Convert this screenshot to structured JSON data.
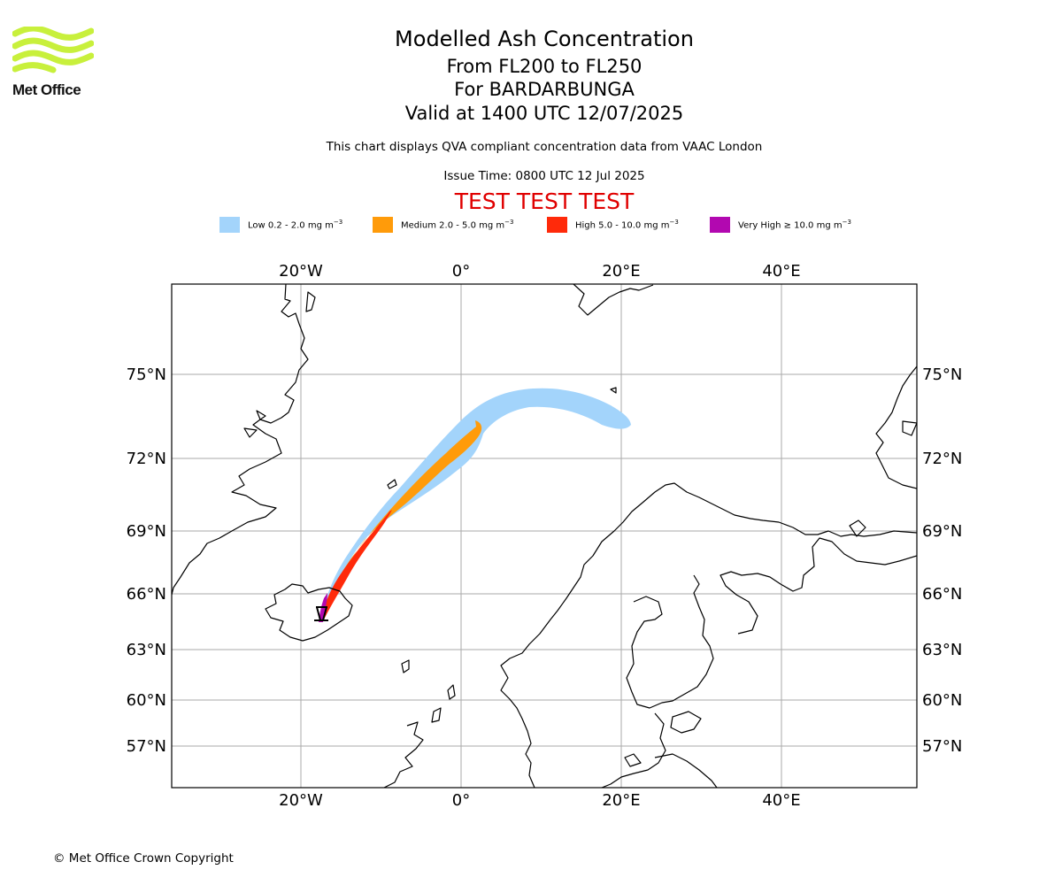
{
  "logo": {
    "text": "Met Office",
    "color": "#c8f03c"
  },
  "title": "Modelled Ash Concentration",
  "subtitle_lines": [
    "From FL200 to FL250",
    "For BARDARBUNGA",
    "Valid at 1400 UTC 12/07/2025"
  ],
  "note": "This chart displays QVA compliant concentration data from VAAC London",
  "issue_time": "Issue Time: 0800 UTC 12 Jul 2025",
  "test_banner": "TEST TEST TEST",
  "legend": [
    {
      "label": "Low 0.2 - 2.0 mg m",
      "color": "#a3d4fb"
    },
    {
      "label": "Medium 2.0 - 5.0 mg m",
      "color": "#ff9b0a"
    },
    {
      "label": "High 5.0 - 10.0 mg m",
      "color": "#ff2a0a"
    },
    {
      "label": "Very High  ≥  10.0 mg m",
      "color": "#b208b0"
    }
  ],
  "legend_unit_exp": "−3",
  "map": {
    "volcano": "BARDARBUNGA",
    "lon_gridlines": [
      "20°W",
      "0°",
      "20°E",
      "40°E"
    ],
    "lat_gridlines": [
      "75°N",
      "72°N",
      "69°N",
      "66°N",
      "63°N",
      "60°N",
      "57°N"
    ],
    "grid_color": "#aaaaaa"
  },
  "copyright": "© Met Office Crown Copyright"
}
